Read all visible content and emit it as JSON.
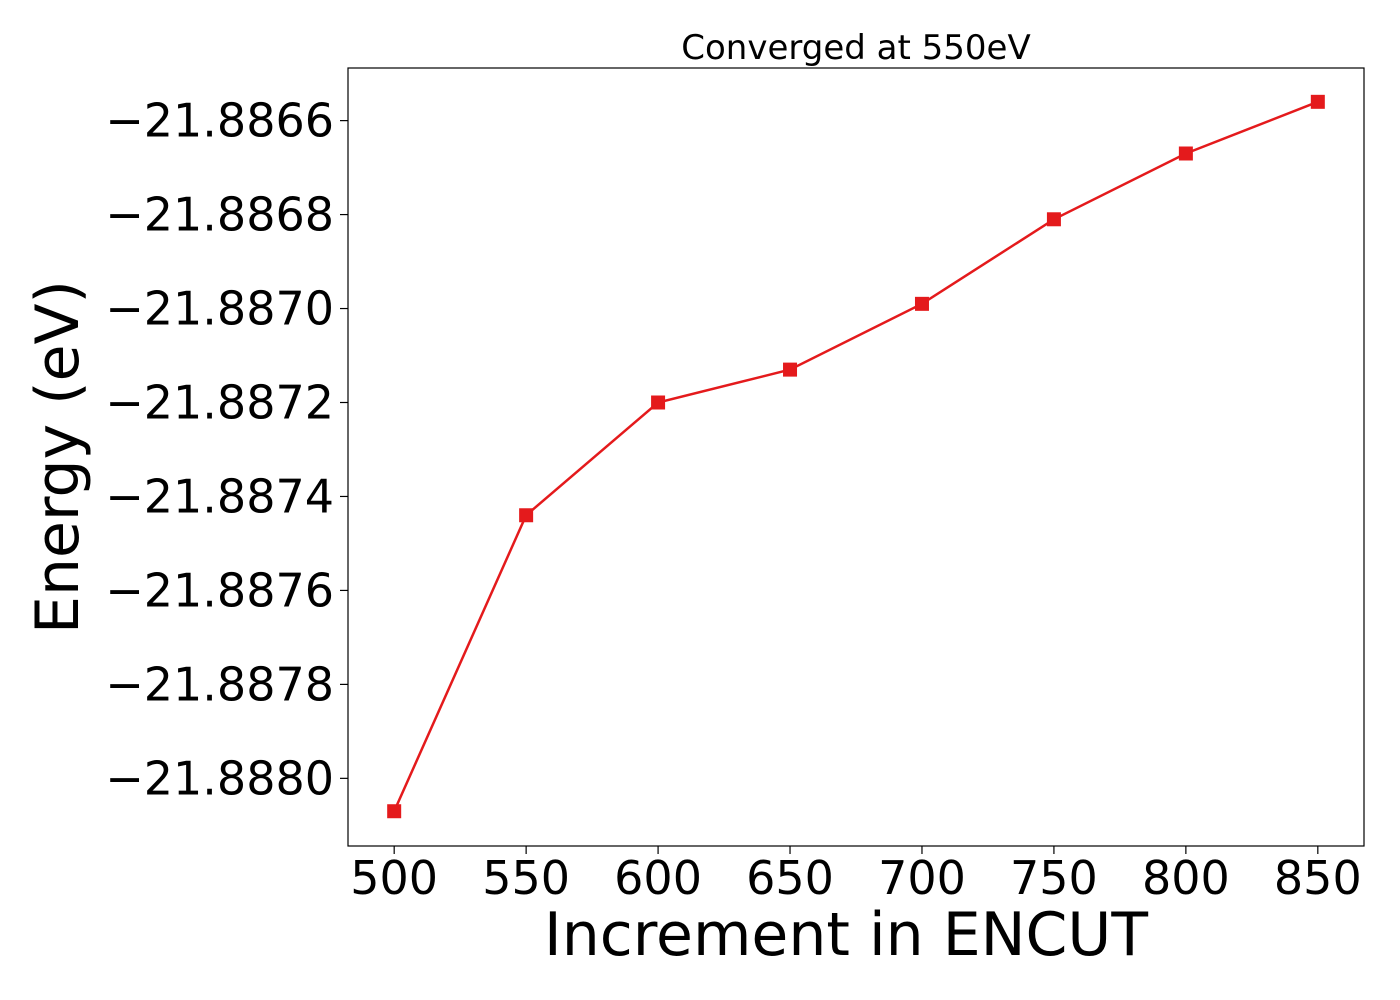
{
  "chart_data": {
    "type": "line",
    "title": "Converged at 550eV",
    "xlabel": "Increment in ENCUT",
    "ylabel": "Energy (eV)",
    "x": [
      500,
      550,
      600,
      650,
      700,
      750,
      800,
      850
    ],
    "series": [
      {
        "values": [
          -21.88807,
          -21.88744,
          -21.8872,
          -21.88713,
          -21.88699,
          -21.88681,
          -21.88667,
          -21.88656
        ],
        "color": "#e41a1c",
        "marker": "square"
      }
    ],
    "xticks": [
      500,
      550,
      600,
      650,
      700,
      750,
      800,
      850
    ],
    "xtick_labels": [
      "500",
      "550",
      "600",
      "650",
      "700",
      "750",
      "800",
      "850"
    ],
    "yticks": [
      -21.888,
      -21.8878,
      -21.8876,
      -21.8874,
      -21.8872,
      -21.887,
      -21.8868,
      -21.8866
    ],
    "ytick_labels": [
      "−21.8880",
      "−21.8878",
      "−21.8876",
      "−21.8874",
      "−21.8872",
      "−21.8870",
      "−21.8868",
      "−21.8866"
    ],
    "xlim": [
      482.5,
      867.5
    ],
    "ylim": [
      -21.888144,
      -21.886488
    ],
    "grid": false,
    "legend": false
  }
}
